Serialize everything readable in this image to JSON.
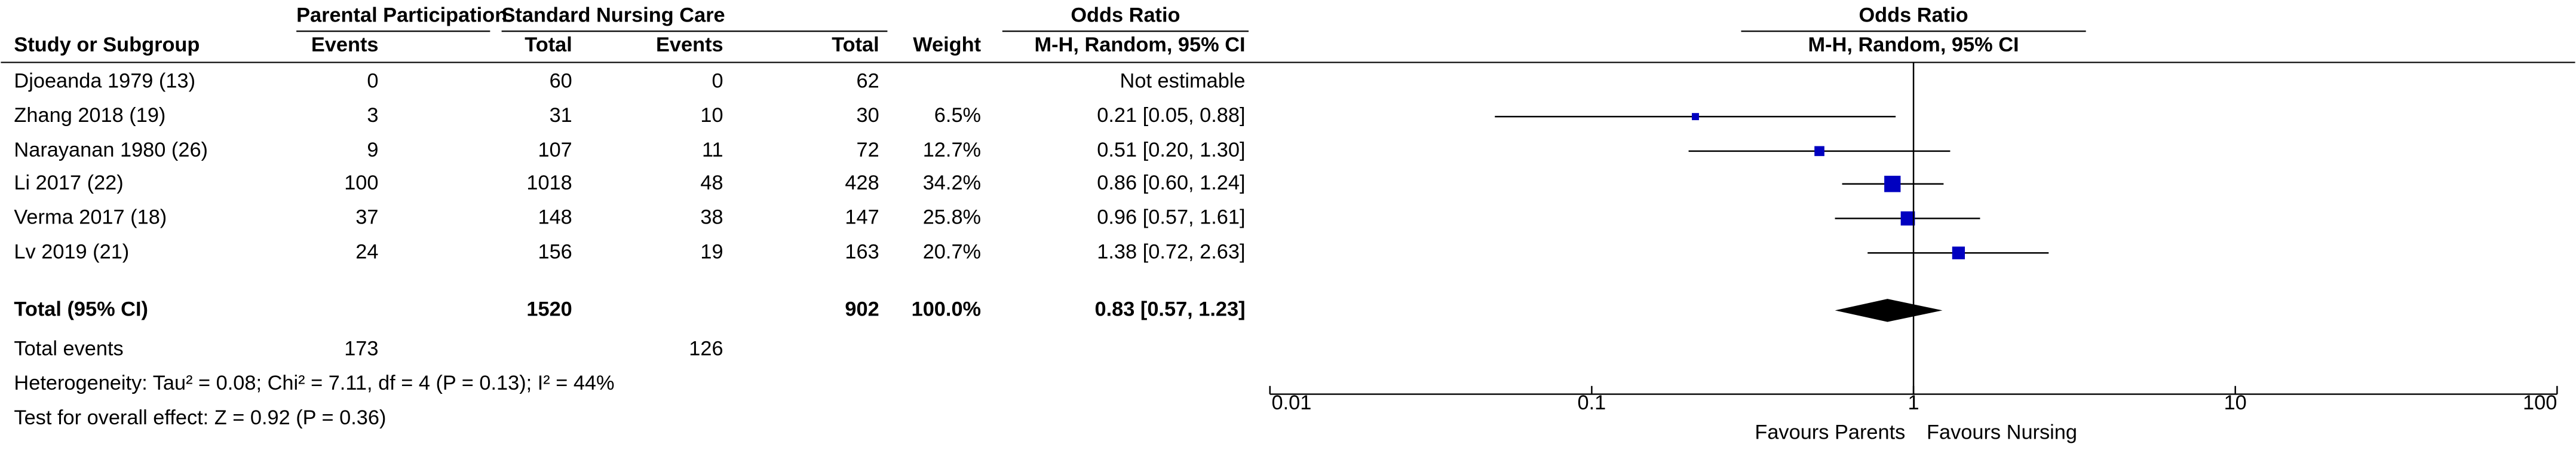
{
  "chart_data": {
    "type": "forest",
    "group_headers": [
      "Parental Participation",
      "Standard Nursing Care",
      "Odds Ratio",
      "Odds Ratio"
    ],
    "column_headers": [
      "Study or Subgroup",
      "Events",
      "Total",
      "Events",
      "Total",
      "Weight",
      "M-H, Random, 95% CI",
      "M-H, Random, 95% CI"
    ],
    "studies": [
      {
        "name": "Djoeanda 1979 (13)",
        "exp_events": 0,
        "exp_total": 60,
        "ctl_events": 0,
        "ctl_total": 62,
        "weight": null,
        "weight_label": null,
        "or": null,
        "lower": null,
        "upper": null,
        "or_label": "Not estimable"
      },
      {
        "name": "Zhang 2018 (19)",
        "exp_events": 3,
        "exp_total": 31,
        "ctl_events": 10,
        "ctl_total": 30,
        "weight": 6.5,
        "weight_label": "6.5%",
        "or": 0.21,
        "lower": 0.05,
        "upper": 0.88,
        "or_label": "0.21 [0.05, 0.88]"
      },
      {
        "name": "Narayanan 1980 (26)",
        "exp_events": 9,
        "exp_total": 107,
        "ctl_events": 11,
        "ctl_total": 72,
        "weight": 12.7,
        "weight_label": "12.7%",
        "or": 0.51,
        "lower": 0.2,
        "upper": 1.3,
        "or_label": "0.51 [0.20, 1.30]"
      },
      {
        "name": "Li 2017 (22)",
        "exp_events": 100,
        "exp_total": 1018,
        "ctl_events": 48,
        "ctl_total": 428,
        "weight": 34.2,
        "weight_label": "34.2%",
        "or": 0.86,
        "lower": 0.6,
        "upper": 1.24,
        "or_label": "0.86 [0.60, 1.24]"
      },
      {
        "name": "Verma 2017 (18)",
        "exp_events": 37,
        "exp_total": 148,
        "ctl_events": 38,
        "ctl_total": 147,
        "weight": 25.8,
        "weight_label": "25.8%",
        "or": 0.96,
        "lower": 0.57,
        "upper": 1.61,
        "or_label": "0.96 [0.57, 1.61]"
      },
      {
        "name": "Lv 2019 (21)",
        "exp_events": 24,
        "exp_total": 156,
        "ctl_events": 19,
        "ctl_total": 163,
        "weight": 20.7,
        "weight_label": "20.7%",
        "or": 1.38,
        "lower": 0.72,
        "upper": 2.63,
        "or_label": "1.38 [0.72, 2.63]"
      }
    ],
    "total": {
      "name": "Total (95% CI)",
      "exp_total": 1520,
      "ctl_total": 902,
      "weight": 100.0,
      "weight_label": "100.0%",
      "or": 0.83,
      "lower": 0.57,
      "upper": 1.23,
      "or_label": "0.83 [0.57, 1.23]"
    },
    "total_events": {
      "label": "Total events",
      "exp": 173,
      "ctl": 126
    },
    "heterogeneity": "Heterogeneity: Tau² = 0.08; Chi² = 7.11, df = 4 (P = 0.13); I² = 44%",
    "overall_effect": "Test for overall effect: Z = 0.92 (P = 0.36)",
    "log_x": true,
    "xlim": [
      0.01,
      100
    ],
    "xticks": [
      0.01,
      0.1,
      1,
      10,
      100
    ],
    "favours": [
      "Favours Parents",
      "Favours Nursing"
    ],
    "color": "#0000c0"
  }
}
